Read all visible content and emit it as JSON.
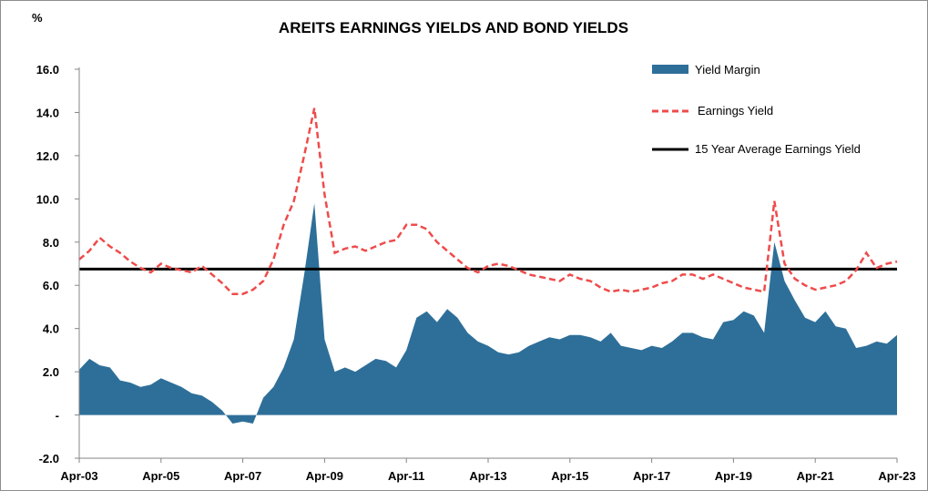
{
  "chart_data": {
    "type": "area",
    "title": "AREITS EARNINGS YIELDS AND BOND YIELDS",
    "ylabel": "%",
    "ylim": [
      -2.0,
      16.0
    ],
    "y_ticks": [
      -2.0,
      0.0,
      2.0,
      4.0,
      6.0,
      8.0,
      10.0,
      12.0,
      14.0,
      16.0
    ],
    "y_tick_labels": [
      "-2.0",
      "-",
      "2.0",
      "4.0",
      "6.0",
      "8.0",
      "10.0",
      "12.0",
      "14.0",
      "16.0"
    ],
    "x_tick_labels": [
      "Apr-03",
      "Apr-05",
      "Apr-07",
      "Apr-09",
      "Apr-11",
      "Apr-13",
      "Apr-15",
      "Apr-17",
      "Apr-19",
      "Apr-21",
      "Apr-23"
    ],
    "x_range": [
      "2003-04",
      "2023-04"
    ],
    "grid": false,
    "legend_position": "top-right",
    "colors": {
      "yield_margin": "#2e6f99",
      "earnings_yield": "#ef4b4b",
      "average": "#000000"
    },
    "series": [
      {
        "name": "Yield Margin",
        "kind": "area",
        "x": [
          "2003-04",
          "2003-07",
          "2003-10",
          "2004-01",
          "2004-04",
          "2004-07",
          "2004-10",
          "2005-01",
          "2005-04",
          "2005-07",
          "2005-10",
          "2006-01",
          "2006-04",
          "2006-07",
          "2006-10",
          "2007-01",
          "2007-04",
          "2007-07",
          "2007-10",
          "2008-01",
          "2008-04",
          "2008-07",
          "2008-10",
          "2009-01",
          "2009-04",
          "2009-07",
          "2009-10",
          "2010-01",
          "2010-04",
          "2010-07",
          "2010-10",
          "2011-01",
          "2011-04",
          "2011-07",
          "2011-10",
          "2012-01",
          "2012-04",
          "2012-07",
          "2012-10",
          "2013-01",
          "2013-04",
          "2013-07",
          "2013-10",
          "2014-01",
          "2014-04",
          "2014-07",
          "2014-10",
          "2015-01",
          "2015-04",
          "2015-07",
          "2015-10",
          "2016-01",
          "2016-04",
          "2016-07",
          "2016-10",
          "2017-01",
          "2017-04",
          "2017-07",
          "2017-10",
          "2018-01",
          "2018-04",
          "2018-07",
          "2018-10",
          "2019-01",
          "2019-04",
          "2019-07",
          "2019-10",
          "2020-01",
          "2020-04",
          "2020-07",
          "2020-10",
          "2021-01",
          "2021-04",
          "2021-07",
          "2021-10",
          "2022-01",
          "2022-04",
          "2022-07",
          "2022-10",
          "2023-01",
          "2023-04"
        ],
        "values": [
          2.1,
          2.6,
          2.3,
          2.2,
          1.6,
          1.5,
          1.3,
          1.4,
          1.7,
          1.5,
          1.3,
          1.0,
          0.9,
          0.6,
          0.2,
          -0.4,
          -0.3,
          -0.4,
          0.8,
          1.3,
          2.2,
          3.5,
          6.5,
          9.8,
          3.5,
          2.0,
          2.2,
          2.0,
          2.3,
          2.6,
          2.5,
          2.2,
          3.0,
          4.5,
          4.8,
          4.3,
          4.9,
          4.5,
          3.8,
          3.4,
          3.2,
          2.9,
          2.8,
          2.9,
          3.2,
          3.4,
          3.6,
          3.5,
          3.7,
          3.7,
          3.6,
          3.4,
          3.8,
          3.2,
          3.1,
          3.0,
          3.2,
          3.1,
          3.4,
          3.8,
          3.8,
          3.6,
          3.5,
          4.3,
          4.4,
          4.8,
          4.6,
          3.8,
          8.0,
          6.2,
          5.3,
          4.5,
          4.3,
          4.8,
          4.1,
          4.0,
          3.1,
          3.2,
          3.4,
          3.3,
          3.7
        ]
      },
      {
        "name": "Earnings Yield",
        "kind": "line",
        "x": [
          "2003-04",
          "2003-07",
          "2003-10",
          "2004-01",
          "2004-04",
          "2004-07",
          "2004-10",
          "2005-01",
          "2005-04",
          "2005-07",
          "2005-10",
          "2006-01",
          "2006-04",
          "2006-07",
          "2006-10",
          "2007-01",
          "2007-04",
          "2007-07",
          "2007-10",
          "2008-01",
          "2008-04",
          "2008-07",
          "2008-10",
          "2009-01",
          "2009-04",
          "2009-07",
          "2009-10",
          "2010-01",
          "2010-04",
          "2010-07",
          "2010-10",
          "2011-01",
          "2011-04",
          "2011-07",
          "2011-10",
          "2012-01",
          "2012-04",
          "2012-07",
          "2012-10",
          "2013-01",
          "2013-04",
          "2013-07",
          "2013-10",
          "2014-01",
          "2014-04",
          "2014-07",
          "2014-10",
          "2015-01",
          "2015-04",
          "2015-07",
          "2015-10",
          "2016-01",
          "2016-04",
          "2016-07",
          "2016-10",
          "2017-01",
          "2017-04",
          "2017-07",
          "2017-10",
          "2018-01",
          "2018-04",
          "2018-07",
          "2018-10",
          "2019-01",
          "2019-04",
          "2019-07",
          "2019-10",
          "2020-01",
          "2020-04",
          "2020-07",
          "2020-10",
          "2021-01",
          "2021-04",
          "2021-07",
          "2021-10",
          "2022-01",
          "2022-04",
          "2022-07",
          "2022-10",
          "2023-01",
          "2023-04"
        ],
        "values": [
          7.2,
          7.6,
          8.2,
          7.8,
          7.5,
          7.1,
          6.8,
          6.6,
          7.0,
          6.8,
          6.7,
          6.6,
          6.9,
          6.5,
          6.1,
          5.6,
          5.6,
          5.8,
          6.2,
          7.2,
          8.8,
          9.9,
          12.0,
          14.2,
          10.2,
          7.5,
          7.7,
          7.8,
          7.6,
          7.8,
          8.0,
          8.1,
          8.8,
          8.8,
          8.6,
          8.0,
          7.6,
          7.2,
          6.8,
          6.6,
          6.9,
          7.0,
          6.9,
          6.7,
          6.5,
          6.4,
          6.3,
          6.2,
          6.5,
          6.3,
          6.2,
          5.9,
          5.7,
          5.8,
          5.7,
          5.8,
          5.9,
          6.1,
          6.2,
          6.5,
          6.5,
          6.3,
          6.5,
          6.3,
          6.1,
          5.9,
          5.8,
          5.7,
          9.9,
          7.0,
          6.3,
          6.0,
          5.8,
          5.9,
          6.0,
          6.2,
          6.7,
          7.5,
          6.8,
          7.0,
          7.1
        ]
      },
      {
        "name": "15 Year Average Earnings Yield",
        "kind": "hline",
        "value": 6.75
      }
    ]
  }
}
